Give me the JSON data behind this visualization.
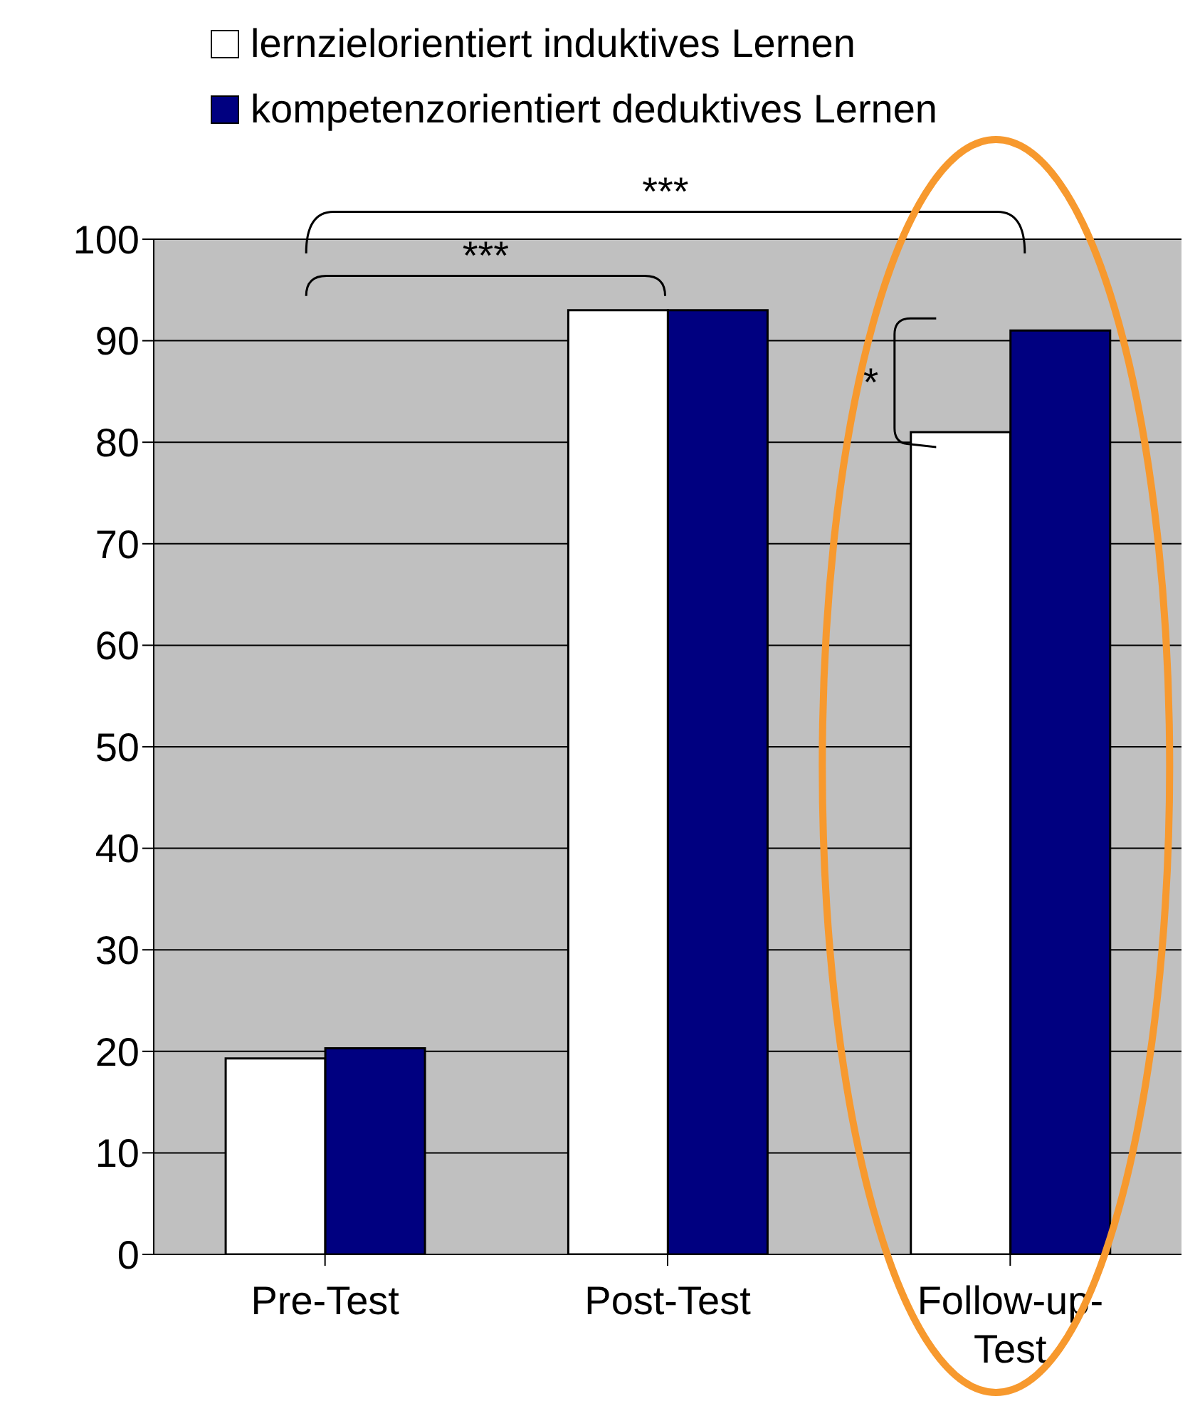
{
  "chart_data": {
    "type": "bar",
    "categories": [
      "Pre-Test",
      "Post-Test",
      "Follow-up-Test"
    ],
    "series": [
      {
        "name": "lernzielorientiert induktives Lernen",
        "color": "#ffffff",
        "values": [
          19.3,
          93,
          81
        ]
      },
      {
        "name": "kompetenzorientiert deduktives Lernen",
        "color": "#000080",
        "values": [
          20.3,
          93,
          91
        ]
      }
    ],
    "ylim": [
      0,
      100
    ],
    "yticks": [
      0,
      10,
      20,
      30,
      40,
      50,
      60,
      70,
      80,
      90,
      100
    ],
    "grid": "y",
    "legend": "top",
    "annotations": [
      "***",
      "***",
      "*"
    ]
  }
}
